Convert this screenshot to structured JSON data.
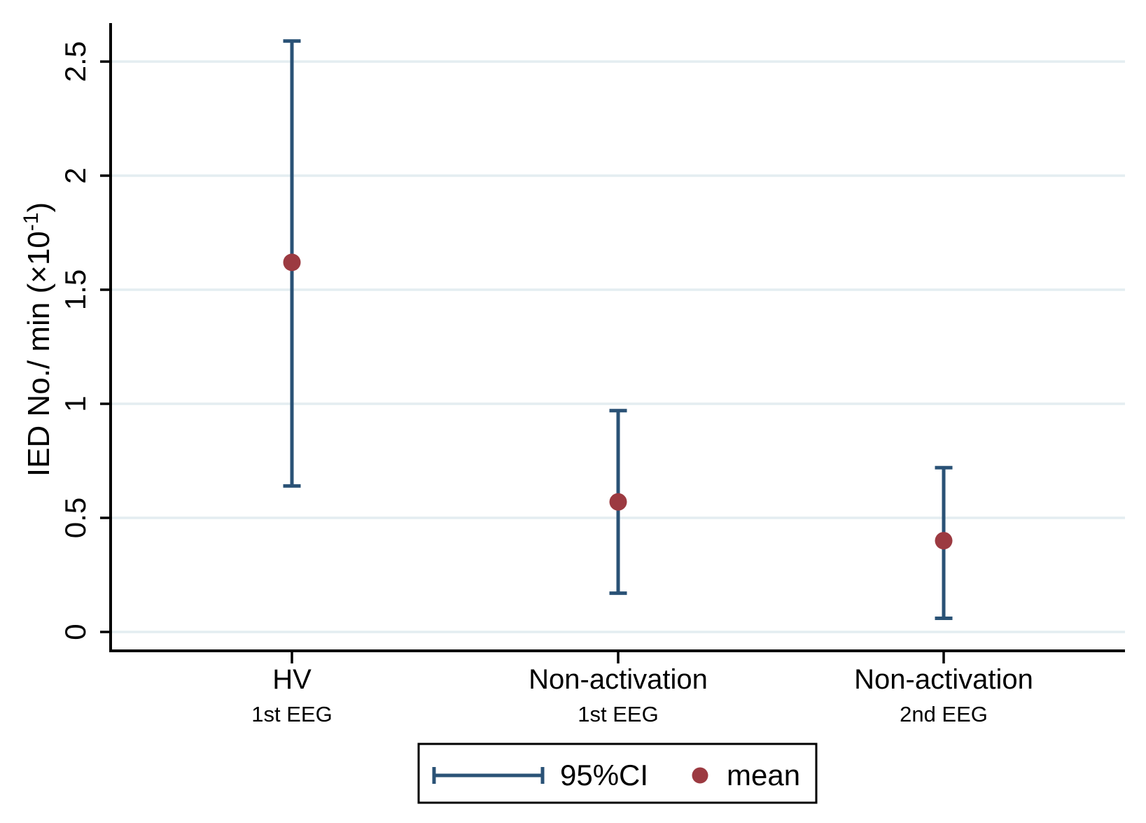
{
  "chart_data": {
    "type": "scatter",
    "subtype": "mean-with-95ci-errorbars",
    "title": "",
    "xlabel": "",
    "ylabel": "IED No./ min (×10⁻¹)",
    "ylabel_parts": {
      "main": "IED No./ min (×10",
      "superscript": "-1",
      "close": ")"
    },
    "ylim": [
      -0.08,
      2.67
    ],
    "yticks": [
      0,
      0.5,
      1,
      1.5,
      2,
      2.5
    ],
    "ytick_labels": [
      "0",
      "0.5",
      "1",
      "1.5",
      "2",
      "2.5"
    ],
    "grid": "on",
    "gridlines_horizontal_at": [
      0,
      0.5,
      1,
      1.5,
      2,
      2.5
    ],
    "legend_position": "bottom-center-boxed",
    "categories": [
      {
        "label": "HV",
        "sublabel": "1st EEG"
      },
      {
        "label": "Non-activation",
        "sublabel": "1st EEG"
      },
      {
        "label": "Non-activation",
        "sublabel": "2nd EEG"
      }
    ],
    "points": [
      {
        "category": "HV 1st EEG",
        "mean": 1.62,
        "ci_low": 0.64,
        "ci_high": 2.59
      },
      {
        "category": "Non-activation 1st EEG",
        "mean": 0.57,
        "ci_low": 0.17,
        "ci_high": 0.97
      },
      {
        "category": "Non-activation 2nd EEG",
        "mean": 0.4,
        "ci_low": 0.06,
        "ci_high": 0.72
      }
    ],
    "legend": [
      {
        "symbol": "error-bar-icon",
        "label": "95%CI"
      },
      {
        "symbol": "dot-icon",
        "label": "mean"
      }
    ],
    "colors": {
      "ci_bar": "#2a5276",
      "mean_marker": "#9c3a41",
      "gridline": "#e4edf1",
      "axis": "#000000",
      "legend_border": "#000000",
      "background": "#ffffff"
    }
  }
}
